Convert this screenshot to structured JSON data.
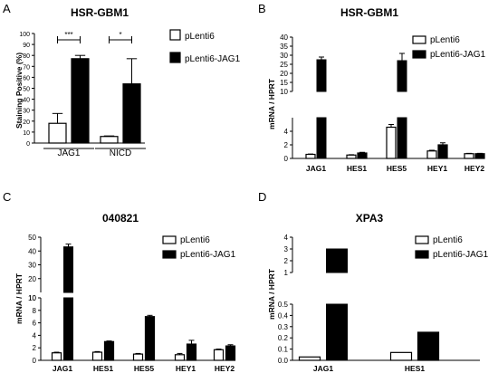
{
  "chart_data": [
    {
      "panel_letter": "A",
      "type": "bar",
      "title": "HSR-GBM1",
      "xlabel": "",
      "ylabel": "Staining Positive (%)",
      "ylim": [
        0,
        100
      ],
      "yticks": [
        "0",
        "10",
        "20",
        "30",
        "40",
        "50",
        "60",
        "70",
        "80",
        "90",
        "100"
      ],
      "categories": [
        "JAG1",
        "NICD"
      ],
      "series": [
        {
          "name": "pLenti6",
          "color": "#ffffff",
          "values": [
            18,
            6
          ],
          "errors": [
            9,
            0.5
          ]
        },
        {
          "name": "pLenti6-JAG1",
          "color": "#000000",
          "values": [
            77,
            54
          ],
          "errors": [
            3,
            23
          ]
        }
      ],
      "significance": [
        "***",
        "*"
      ],
      "legend_position": "right"
    },
    {
      "panel_letter": "B",
      "type": "bar",
      "title": "HSR-GBM1",
      "xlabel": "",
      "ylabel": "mRNA / HPRT",
      "axis_break": {
        "lower_range": [
          0,
          6
        ],
        "upper_range": [
          10,
          40
        ]
      },
      "yticks_lower": [
        "0",
        "2",
        "4"
      ],
      "yticks_upper": [
        "10",
        "15",
        "20",
        "25",
        "30",
        "35",
        "40"
      ],
      "categories": [
        "JAG1",
        "HES1",
        "HES5",
        "HEY1",
        "HEY2"
      ],
      "series": [
        {
          "name": "pLenti6",
          "color": "#ffffff",
          "values": [
            0.6,
            0.5,
            4.6,
            1.1,
            0.7
          ],
          "errors": [
            0.05,
            0.05,
            0.4,
            0.1,
            0.05
          ]
        },
        {
          "name": "pLenti6-JAG1",
          "color": "#000000",
          "values": [
            27.5,
            0.8,
            27.0,
            2.0,
            0.7
          ],
          "errors": [
            1.5,
            0.1,
            4.0,
            0.3,
            0.05
          ]
        }
      ],
      "legend_position": "top-right"
    },
    {
      "panel_letter": "C",
      "type": "bar",
      "title": "040821",
      "xlabel": "",
      "ylabel": "mRNA / HPRT",
      "axis_break": {
        "lower_range": [
          0,
          10
        ],
        "upper_range": [
          10,
          50
        ]
      },
      "yticks_lower": [
        "0",
        "2",
        "4",
        "6",
        "8",
        "10"
      ],
      "yticks_upper": [
        "10",
        "20",
        "30",
        "40",
        "50"
      ],
      "categories": [
        "JAG1",
        "HES1",
        "HES5",
        "HEY1",
        "HEY2"
      ],
      "series": [
        {
          "name": "pLenti6",
          "color": "#ffffff",
          "values": [
            1.2,
            1.3,
            1.0,
            0.9,
            1.7
          ],
          "errors": [
            0.1,
            0.1,
            0.1,
            0.2,
            0.1
          ]
        },
        {
          "name": "pLenti6-JAG1",
          "color": "#000000",
          "values": [
            43.0,
            3.0,
            7.0,
            2.6,
            2.3
          ],
          "errors": [
            2.0,
            0.1,
            0.2,
            0.6,
            0.2
          ]
        }
      ],
      "legend_position": "top-right"
    },
    {
      "panel_letter": "D",
      "type": "bar",
      "title": "XPA3",
      "xlabel": "",
      "ylabel": "mRNA / HPRT",
      "axis_break": {
        "lower_range": [
          0,
          0.5
        ],
        "upper_range": [
          1,
          4
        ]
      },
      "yticks_lower": [
        "0.0",
        "0.1",
        "0.2",
        "0.3",
        "0.4",
        "0.5"
      ],
      "yticks_upper": [
        "1",
        "2",
        "3",
        "4"
      ],
      "categories": [
        "JAG1",
        "HES1"
      ],
      "series": [
        {
          "name": "pLenti6",
          "color": "#ffffff",
          "values": [
            0.03,
            0.07
          ]
        },
        {
          "name": "pLenti6-JAG1",
          "color": "#000000",
          "values": [
            3.0,
            0.25
          ]
        }
      ],
      "legend_position": "top-right"
    }
  ]
}
